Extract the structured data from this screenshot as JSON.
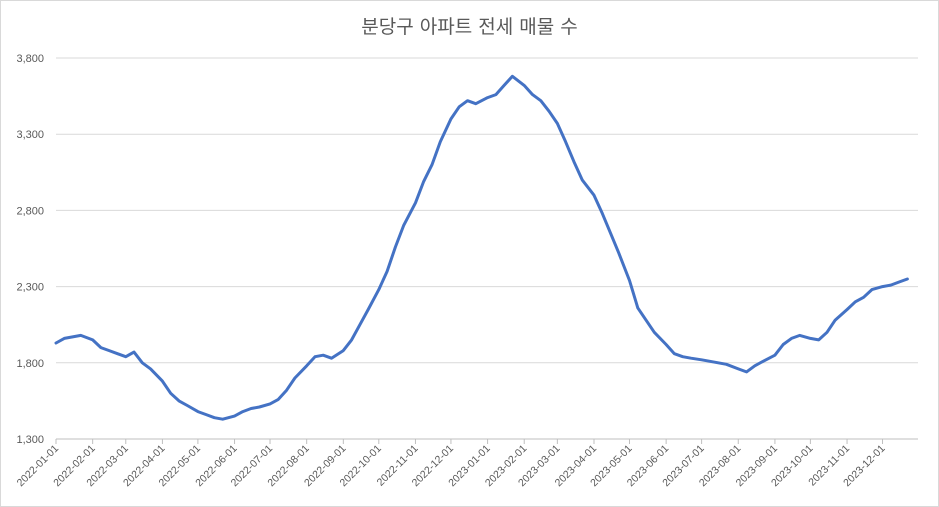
{
  "chart_data": {
    "type": "line",
    "title": "분당구 아파트 전세 매물 수",
    "xlabel": "",
    "ylabel": "",
    "ylim": [
      1300,
      3800
    ],
    "yticks": [
      "3,800",
      "3,300",
      "2,800",
      "2,300",
      "1,800",
      "1,300"
    ],
    "ytick_values": [
      3800,
      3300,
      2800,
      2300,
      1800,
      1300
    ],
    "xticks": [
      "2022-01-01",
      "2022-02-01",
      "2022-03-01",
      "2022-04-01",
      "2022-05-01",
      "2022-06-01",
      "2022-07-01",
      "2022-08-01",
      "2022-09-01",
      "2022-10-01",
      "2022-11-01",
      "2022-12-01",
      "2023-01-01",
      "2023-02-01",
      "2023-03-01",
      "2023-04-01",
      "2023-05-01",
      "2023-06-01",
      "2023-07-01",
      "2023-08-01",
      "2023-09-01",
      "2023-10-01",
      "2023-11-01",
      "2023-12-01"
    ],
    "grid": true,
    "legend": "none",
    "line_color": "#4472c4",
    "series": [
      {
        "x": [
          "2022-01-01",
          "2022-01-08",
          "2022-01-15",
          "2022-01-22",
          "2022-02-01",
          "2022-02-08",
          "2022-02-15",
          "2022-02-22",
          "2022-03-01",
          "2022-03-08",
          "2022-03-15",
          "2022-03-22",
          "2022-04-01",
          "2022-04-08",
          "2022-04-15",
          "2022-04-22",
          "2022-05-01",
          "2022-05-08",
          "2022-05-15",
          "2022-05-22",
          "2022-06-01",
          "2022-06-08",
          "2022-06-15",
          "2022-06-22",
          "2022-07-01",
          "2022-07-08",
          "2022-07-15",
          "2022-07-22",
          "2022-08-01",
          "2022-08-08",
          "2022-08-15",
          "2022-08-22",
          "2022-09-01",
          "2022-09-08",
          "2022-09-15",
          "2022-09-22",
          "2022-10-01",
          "2022-10-08",
          "2022-10-15",
          "2022-10-22",
          "2022-11-01",
          "2022-11-08",
          "2022-11-15",
          "2022-11-22",
          "2022-12-01",
          "2022-12-08",
          "2022-12-15",
          "2022-12-22",
          "2023-01-01",
          "2023-01-08",
          "2023-01-15",
          "2023-01-22",
          "2023-02-01",
          "2023-02-08",
          "2023-02-15",
          "2023-02-22",
          "2023-03-01",
          "2023-03-08",
          "2023-03-15",
          "2023-03-22",
          "2023-04-01",
          "2023-04-08",
          "2023-04-15",
          "2023-04-22",
          "2023-05-01",
          "2023-05-08",
          "2023-05-15",
          "2023-05-22",
          "2023-06-01",
          "2023-06-08",
          "2023-06-15",
          "2023-06-22",
          "2023-07-01",
          "2023-07-08",
          "2023-07-15",
          "2023-07-22",
          "2023-08-01",
          "2023-08-08",
          "2023-08-15",
          "2023-08-22",
          "2023-09-01",
          "2023-09-08",
          "2023-09-15",
          "2023-09-22",
          "2023-10-01",
          "2023-10-08",
          "2023-10-15",
          "2023-10-22",
          "2023-11-01",
          "2023-11-08",
          "2023-11-15",
          "2023-11-22",
          "2023-12-01",
          "2023-12-08",
          "2023-12-15",
          "2023-12-22"
        ],
        "values": [
          1930,
          1960,
          1970,
          1980,
          1950,
          1900,
          1880,
          1860,
          1840,
          1870,
          1800,
          1760,
          1680,
          1600,
          1550,
          1520,
          1480,
          1460,
          1440,
          1430,
          1450,
          1480,
          1500,
          1510,
          1530,
          1560,
          1620,
          1700,
          1780,
          1840,
          1850,
          1830,
          1880,
          1950,
          2050,
          2150,
          2280,
          2400,
          2560,
          2700,
          2850,
          2990,
          3100,
          3250,
          3400,
          3480,
          3520,
          3500,
          3540,
          3560,
          3620,
          3680,
          3620,
          3560,
          3520,
          3450,
          3370,
          3250,
          3120,
          3000,
          2900,
          2780,
          2650,
          2520,
          2340,
          2160,
          2080,
          2000,
          1920,
          1860,
          1840,
          1830,
          1820,
          1810,
          1800,
          1790,
          1760,
          1740,
          1780,
          1810,
          1850,
          1920,
          1960,
          1980,
          1960,
          1950,
          2000,
          2080,
          2150,
          2200,
          2230,
          2280,
          2300,
          2310,
          2330,
          2350
        ]
      }
    ]
  }
}
